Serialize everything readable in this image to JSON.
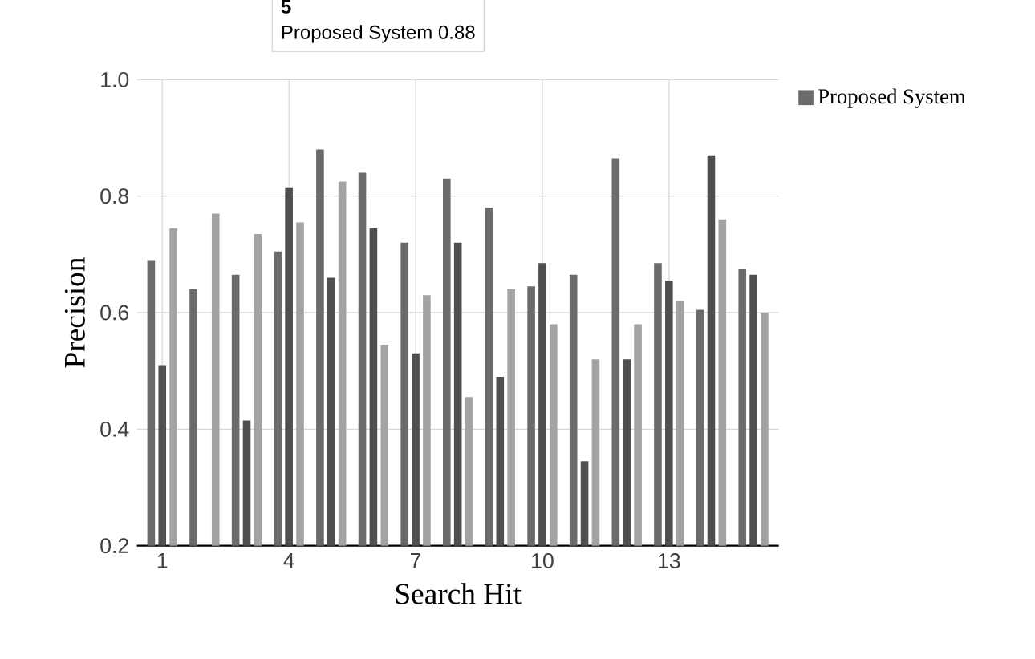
{
  "chart_data": {
    "type": "bar",
    "xlabel": "Search Hit",
    "ylabel": "Precision",
    "categories": [
      "1",
      null,
      null,
      "4",
      null,
      null,
      "7",
      null,
      null,
      "10",
      null,
      null,
      "13",
      null,
      null
    ],
    "series": [
      {
        "name": "Proposed System",
        "color": "#6b6b6b",
        "values": [
          0.69,
          0.64,
          0.665,
          0.705,
          0.88,
          0.84,
          0.72,
          0.83,
          0.78,
          0.645,
          0.665,
          0.865,
          0.685,
          0.605,
          0.675
        ]
      },
      {
        "color": "#4f4f4f",
        "values": [
          0.51,
          null,
          0.415,
          0.815,
          0.66,
          0.745,
          0.53,
          0.72,
          0.49,
          0.685,
          0.345,
          0.52,
          0.655,
          0.87,
          0.665
        ]
      },
      {
        "color": "#a3a3a3",
        "values": [
          0.745,
          0.77,
          0.735,
          0.755,
          0.825,
          0.545,
          0.63,
          0.455,
          0.64,
          0.58,
          0.52,
          0.58,
          0.62,
          0.76,
          0.6
        ]
      }
    ],
    "ylim": [
      0.2,
      1.0
    ],
    "yticks": [
      {
        "value": 0.2,
        "label": "0.2"
      },
      {
        "value": 0.4,
        "label": "0.4"
      },
      {
        "value": 0.6,
        "label": "0.6"
      },
      {
        "value": 0.8,
        "label": "0.8"
      },
      {
        "value": 1.0,
        "label": "1.0"
      }
    ],
    "grid": true,
    "legend": "top right",
    "annotations": [
      "5",
      "Proposed System 0.88"
    ]
  }
}
